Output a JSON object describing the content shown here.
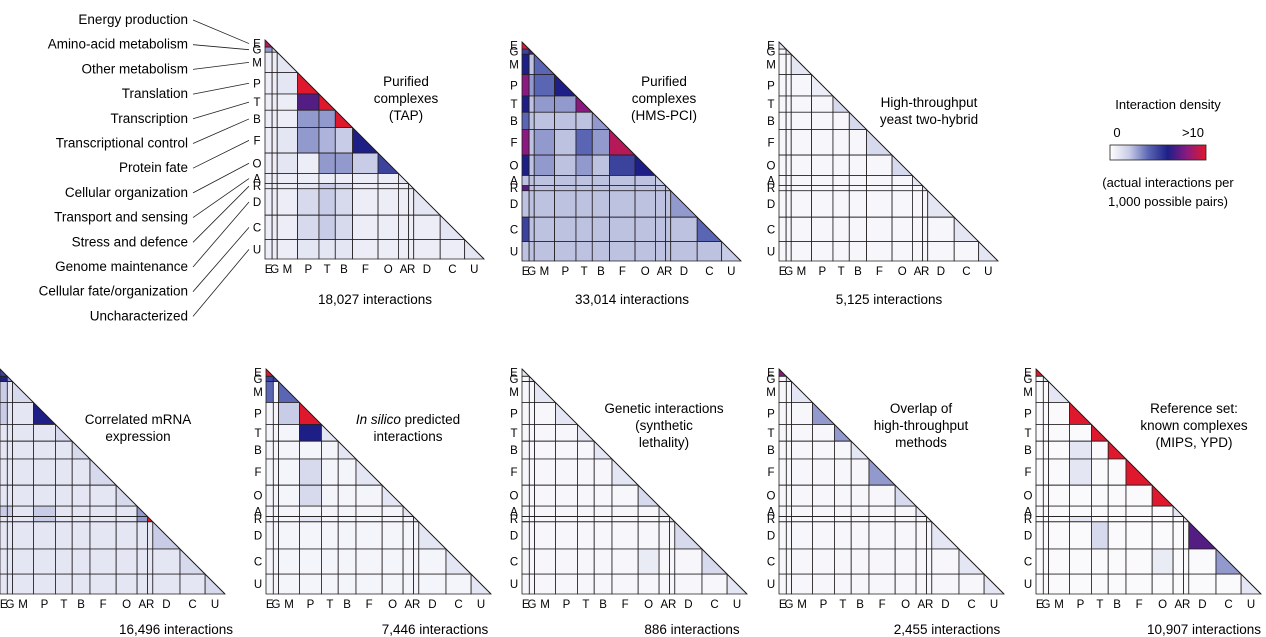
{
  "categories": [
    {
      "code": "E",
      "name": "Energy production"
    },
    {
      "code": "G",
      "name": "Amino-acid metabolism"
    },
    {
      "code": "M",
      "name": "Other metabolism"
    },
    {
      "code": "P",
      "name": "Translation"
    },
    {
      "code": "T",
      "name": "Transcription"
    },
    {
      "code": "B",
      "name": "Transcriptional control"
    },
    {
      "code": "F",
      "name": "Protein fate"
    },
    {
      "code": "O",
      "name": "Cellular organization"
    },
    {
      "code": "A",
      "name": "Transport and sensing"
    },
    {
      "code": "R",
      "name": "Stress and defence"
    },
    {
      "code": "D",
      "name": "Genome maintenance"
    },
    {
      "code": "C",
      "name": "Cellular fate/organization"
    },
    {
      "code": "U",
      "name": "Uncharacterized"
    }
  ],
  "legend": {
    "title": "Interaction density",
    "min_label": "0",
    "max_label": ">10",
    "note_line1": "(actual interactions per",
    "note_line2": "1,000 possible pairs)",
    "colors": [
      "#ffffff",
      "#c9cce6",
      "#5a66b4",
      "#1d1f86",
      "#8a1a80",
      "#e0182d"
    ]
  },
  "chart_data": {
    "type": "heatmap",
    "value_scale": "0 to >10 actual interactions per 1,000 possible pairs",
    "panels": [
      {
        "title_lines": [
          "Purified",
          "complexes",
          "(TAP)"
        ],
        "count_label": "18,027 interactions",
        "diag": [
          9,
          2,
          1,
          12,
          12,
          10,
          6,
          5,
          1,
          1,
          1,
          1,
          1
        ],
        "off": {
          "G-E": 3,
          "P-M": 1,
          "T-P": 7,
          "B-P": 3,
          "B-T": 3,
          "F-P": 3,
          "F-T": 2.5,
          "F-B": 2,
          "O-T": 3,
          "O-B": 3,
          "O-F": 2,
          "R-T": 2,
          "R-B": 1.5,
          "D-T": 2,
          "D-B": 1.5,
          "C-T": 2,
          "C-B": 1.5,
          "F-M": 1,
          "O-M": 1,
          "D-P": 1.5,
          "C-P": 1.5,
          "R-P": 1,
          "U-P": 1,
          "U-T": 1,
          "U-B": 1
        },
        "base": 0.7
      },
      {
        "title_lines": [
          "Purified",
          "complexes",
          "(HMS-PCI)"
        ],
        "count_label": "33,014 interactions",
        "diag": [
          12,
          7,
          4,
          6,
          8,
          3,
          9,
          6,
          2,
          2,
          3,
          4,
          2
        ],
        "off": {
          "G-E": 5,
          "M-E": 6,
          "P-E": 8,
          "T-E": 6,
          "B-E": 4,
          "F-E": 8,
          "O-E": 6,
          "R-E": 7,
          "C-E": 5,
          "P-G": 3,
          "P-M": 4,
          "T-P": 3,
          "T-M": 3,
          "F-T": 4,
          "F-B": 3,
          "O-T": 3,
          "O-F": 5,
          "F-M": 3,
          "O-M": 3
        },
        "base": 2.2
      },
      {
        "title_lines": [
          "High-throughput",
          "yeast two-hybrid"
        ],
        "count_label": "5,125 interactions",
        "diag": [
          1,
          1,
          1,
          0.7,
          1.5,
          1.5,
          1.5,
          1.5,
          1,
          1,
          1,
          1,
          1
        ],
        "off": {},
        "base": 0.3
      },
      {
        "title_lines": [
          "Correlated mRNA",
          "expression"
        ],
        "count_label": "16,496 interactions",
        "diag": [
          5,
          3,
          1.5,
          6,
          1.5,
          1.5,
          1.5,
          1.5,
          3,
          12,
          2,
          1.5,
          1.5
        ],
        "off": {
          "G-E": 6,
          "M-E": 2,
          "P-E": 2,
          "A-P": 2,
          "R-P": 2,
          "A-E": 2,
          "A-G": 2,
          "R-A": 3
        },
        "base": 1
      },
      {
        "title_lines": [
          "In silico predicted",
          "interactions"
        ],
        "italic_prefix": "In silico",
        "count_label": "7,446 interactions",
        "diag": [
          12,
          5,
          4,
          12,
          1,
          1,
          1,
          1,
          1,
          1,
          1,
          1,
          1
        ],
        "off": {
          "G-E": 5,
          "M-E": 4,
          "P-M": 2,
          "T-P": 6,
          "F-P": 1.5,
          "O-P": 1.5,
          "R-P": 1
        },
        "base": 0.4
      },
      {
        "title_lines": [
          "Genetic interactions",
          "(synthetic",
          "lethality)"
        ],
        "count_label": "886 interactions",
        "diag": [
          1,
          1,
          1,
          1,
          1,
          1,
          1,
          1.5,
          1,
          1,
          1.5,
          1.5,
          1
        ],
        "off": {
          "C-O": 0.8
        },
        "base": 0.3
      },
      {
        "title_lines": [
          "Overlap of",
          "high-throughput",
          "methods"
        ],
        "count_label": "2,455 interactions",
        "diag": [
          8,
          1,
          1,
          3,
          3,
          1,
          3,
          1.5,
          1,
          1,
          1,
          1,
          1
        ],
        "off": {},
        "base": 0.3
      },
      {
        "title_lines": [
          "Reference set:",
          "known complexes",
          "(MIPS, YPD)"
        ],
        "count_label": "10,907 interactions",
        "diag": [
          12,
          1,
          1,
          12,
          12,
          12,
          12,
          12,
          1,
          1,
          7,
          3,
          1
        ],
        "off": {
          "F-P": 1,
          "R-P": 1,
          "D-T": 1.5,
          "B-P": 1,
          "C-O": 0.8
        },
        "base": 0.2
      }
    ]
  }
}
